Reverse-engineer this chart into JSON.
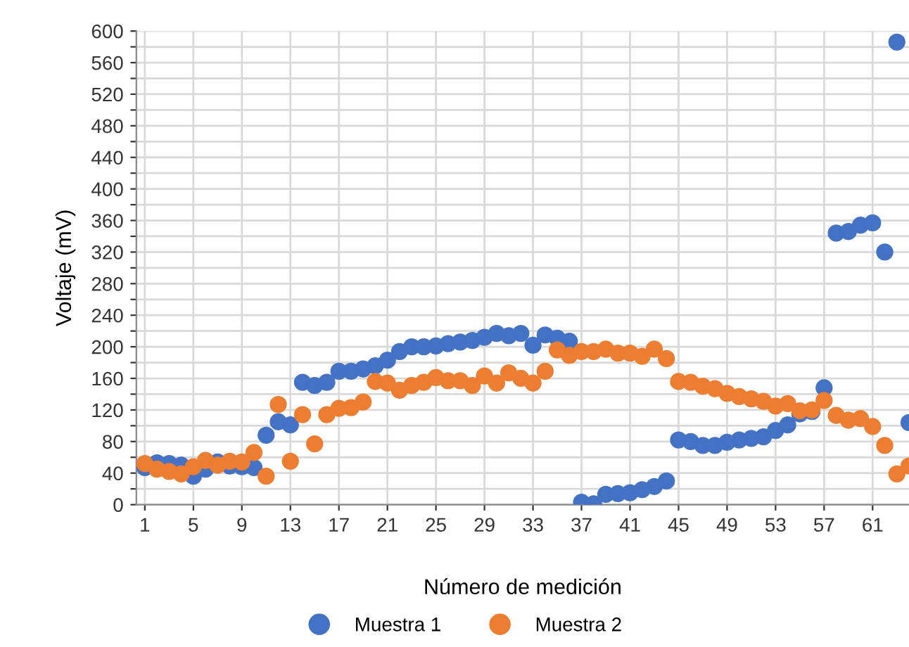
{
  "chart_data": {
    "type": "scatter",
    "xlabel": "Número de medición",
    "ylabel": "Voltaje (mV)",
    "x": [
      1,
      2,
      3,
      4,
      5,
      6,
      7,
      8,
      9,
      10,
      11,
      12,
      13,
      14,
      15,
      16,
      17,
      18,
      19,
      20,
      21,
      22,
      23,
      24,
      25,
      26,
      27,
      28,
      29,
      30,
      31,
      32,
      33,
      34,
      35,
      36,
      37,
      38,
      39,
      40,
      41,
      42,
      43,
      44,
      45,
      46,
      47,
      48,
      49,
      50,
      51,
      52,
      53,
      54,
      55,
      56,
      57,
      58,
      59,
      60,
      61,
      62,
      63,
      64
    ],
    "series": [
      {
        "name": "Muestra 1",
        "color": "#4472c4",
        "values": [
          47,
          53,
          52,
          50,
          36,
          45,
          54,
          49,
          48,
          47,
          88,
          105,
          101,
          155,
          151,
          155,
          169,
          169,
          172,
          176,
          183,
          194,
          200,
          200,
          201,
          204,
          206,
          208,
          212,
          217,
          214,
          217,
          202,
          215,
          211,
          207,
          3,
          1,
          13,
          14,
          15,
          19,
          23,
          30,
          82,
          80,
          75,
          75,
          79,
          82,
          84,
          86,
          94,
          101,
          115,
          118,
          148,
          344,
          346,
          354,
          357,
          320,
          586,
          104
        ]
      },
      {
        "name": "Muestra 2",
        "color": "#ed7d31",
        "values": [
          52,
          45,
          42,
          39,
          48,
          56,
          50,
          55,
          54,
          66,
          36,
          127,
          55,
          114,
          77,
          114,
          122,
          123,
          130,
          156,
          154,
          145,
          151,
          155,
          161,
          157,
          157,
          151,
          163,
          154,
          167,
          160,
          154,
          169,
          196,
          189,
          194,
          194,
          197,
          192,
          192,
          188,
          197,
          185,
          156,
          155,
          150,
          147,
          141,
          137,
          134,
          131,
          125,
          128,
          119,
          120,
          132,
          113,
          107,
          109,
          99,
          75,
          39,
          49
        ]
      }
    ],
    "xlim": [
      0.3,
      64
    ],
    "xticks": [
      1,
      5,
      9,
      13,
      17,
      21,
      25,
      29,
      33,
      37,
      41,
      45,
      49,
      53,
      57,
      61
    ],
    "ylim": [
      0,
      600
    ],
    "yticks": [
      0,
      {
        "value": 20,
        "label": null
      },
      40,
      {
        "value": 60,
        "label": null
      },
      80,
      {
        "value": 100,
        "label": null
      },
      120,
      {
        "value": 140,
        "label": null
      },
      160,
      {
        "value": 180,
        "label": null
      },
      200,
      {
        "value": 220,
        "label": null
      },
      240,
      {
        "value": 260,
        "label": null
      },
      280,
      {
        "value": 300,
        "label": null
      },
      320,
      {
        "value": 340,
        "label": null
      },
      360,
      {
        "value": 380,
        "label": null
      },
      400,
      {
        "value": 420,
        "label": null
      },
      440,
      {
        "value": 460,
        "label": null
      },
      480,
      {
        "value": 500,
        "label": null
      },
      520,
      {
        "value": 540,
        "label": null
      },
      560,
      {
        "value": 580,
        "label": null
      },
      600
    ],
    "grid": true,
    "marker": "circle",
    "legend": "bottom"
  }
}
